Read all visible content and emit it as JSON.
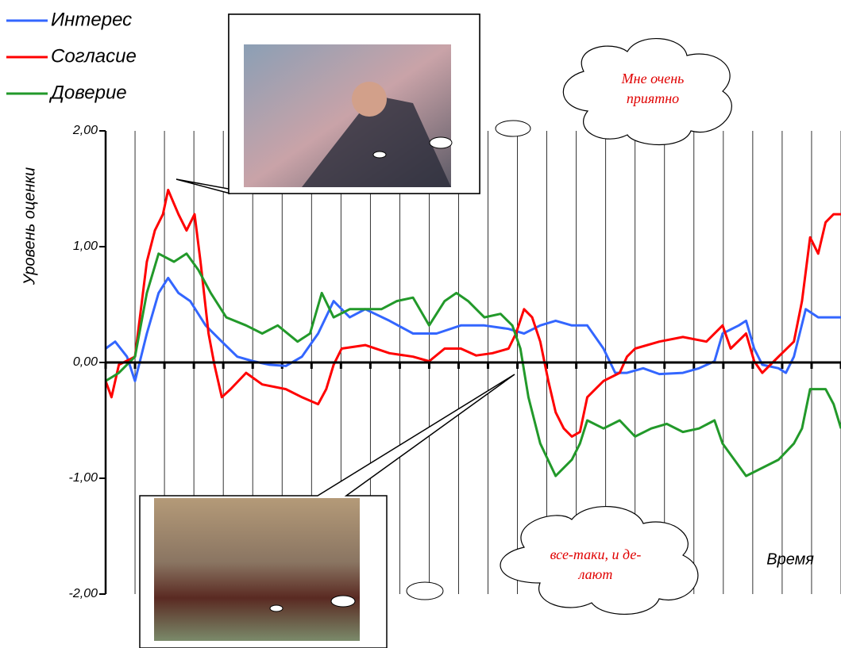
{
  "chart_data": {
    "type": "line",
    "y_label": "Уровень оценки",
    "x_label": "Время",
    "xlim": [
      0,
      100
    ],
    "xticks": [
      0,
      4,
      8,
      12,
      16,
      20,
      24,
      28,
      32,
      36,
      40,
      44,
      48,
      52,
      56,
      60,
      64,
      68,
      72,
      76,
      80,
      84,
      88,
      92,
      96,
      100
    ],
    "ylim": [
      -2,
      2
    ],
    "yticks": [
      {
        "value": 2,
        "label": "2,00"
      },
      {
        "value": 1,
        "label": "1,00"
      },
      {
        "value": 0,
        "label": "0,00"
      },
      {
        "value": -1,
        "label": "-1,00"
      },
      {
        "value": -2,
        "label": "-2,00"
      }
    ],
    "grid": true,
    "series": [
      {
        "name": "Интерес",
        "color": "#3366ff",
        "x": [
          0,
          1.3,
          2.9,
          4,
          5.6,
          7.2,
          8.5,
          9.9,
          11.5,
          13.6,
          15.8,
          17.9,
          20.1,
          22.3,
          24.5,
          26.7,
          28.9,
          31,
          33.2,
          35.3,
          38.6,
          41.8,
          45,
          48.3,
          51.5,
          54.8,
          56.9,
          59.1,
          61.2,
          63.4,
          65.5,
          67.7,
          69.3,
          70.9,
          73.1,
          75.3,
          78.5,
          80.7,
          82.8,
          83.9,
          86.1,
          87.1,
          88.2,
          89.3,
          91.5,
          92.5,
          93.6,
          95.2,
          96.9,
          100
        ],
        "values": [
          0.12,
          0.18,
          0.05,
          -0.16,
          0.25,
          0.6,
          0.73,
          0.6,
          0.53,
          0.32,
          0.18,
          0.05,
          0.01,
          -0.02,
          -0.03,
          0.05,
          0.25,
          0.53,
          0.39,
          0.46,
          0.36,
          0.25,
          0.25,
          0.32,
          0.32,
          0.29,
          0.25,
          0.32,
          0.36,
          0.32,
          0.32,
          0.12,
          -0.09,
          -0.09,
          -0.05,
          -0.1,
          -0.09,
          -0.05,
          0.01,
          0.25,
          0.32,
          0.36,
          0.12,
          -0.02,
          -0.05,
          -0.09,
          0.05,
          0.46,
          0.39,
          0.39
        ]
      },
      {
        "name": "Согласие",
        "color": "#ff0000",
        "x": [
          0,
          0.8,
          1.8,
          4,
          5.6,
          6.7,
          7.8,
          8.5,
          9.9,
          11,
          12.1,
          12.9,
          14,
          14.8,
          15.8,
          17,
          19.1,
          21.3,
          24.5,
          26.7,
          28.9,
          30,
          31,
          32.1,
          35.3,
          38.6,
          41.8,
          44,
          46.1,
          48.3,
          50.4,
          52.6,
          54.8,
          55.8,
          56.9,
          58,
          59.1,
          60.2,
          61.2,
          62.3,
          63.4,
          64.5,
          65.5,
          66.6,
          67.7,
          69.9,
          70.9,
          72,
          75.3,
          78.5,
          81.7,
          83.9,
          85,
          87.1,
          88.2,
          89.3,
          91.5,
          93.6,
          94.7,
          95.8,
          96.9,
          97.9,
          99,
          100
        ],
        "values": [
          -0.16,
          -0.3,
          -0.02,
          0.05,
          0.87,
          1.14,
          1.28,
          1.49,
          1.28,
          1.14,
          1.28,
          0.87,
          0.25,
          -0.02,
          -0.3,
          -0.23,
          -0.09,
          -0.19,
          -0.23,
          -0.3,
          -0.36,
          -0.23,
          -0.02,
          0.12,
          0.15,
          0.08,
          0.05,
          0.01,
          0.12,
          0.12,
          0.06,
          0.08,
          0.12,
          0.25,
          0.46,
          0.39,
          0.18,
          -0.16,
          -0.43,
          -0.57,
          -0.64,
          -0.6,
          -0.3,
          -0.23,
          -0.16,
          -0.09,
          0.05,
          0.12,
          0.18,
          0.22,
          0.18,
          0.32,
          0.12,
          0.25,
          0.01,
          -0.09,
          0.05,
          0.18,
          0.53,
          1.08,
          0.94,
          1.21,
          1.28,
          1.28
        ]
      },
      {
        "name": "Доверие",
        "color": "#22992a",
        "x": [
          0,
          1.8,
          4,
          5.6,
          7.2,
          9.3,
          11,
          12.6,
          14.3,
          16.4,
          19.1,
          21.3,
          23.4,
          26.1,
          27.8,
          29.4,
          31,
          33.2,
          35.3,
          37.5,
          39.6,
          41.8,
          44,
          46.1,
          47.7,
          49.3,
          51.5,
          53.7,
          55.3,
          56.4,
          57.5,
          59.1,
          61.2,
          63.4,
          64.5,
          65.5,
          67.7,
          69.9,
          72,
          74.2,
          76.3,
          78.5,
          80.7,
          82.8,
          83.9,
          85.5,
          87.1,
          89.3,
          91.5,
          93.6,
          94.7,
          95.8,
          97.9,
          99,
          100
        ],
        "values": [
          -0.16,
          -0.09,
          0.05,
          0.6,
          0.94,
          0.87,
          0.94,
          0.8,
          0.6,
          0.39,
          0.32,
          0.25,
          0.32,
          0.18,
          0.25,
          0.6,
          0.39,
          0.46,
          0.46,
          0.46,
          0.53,
          0.56,
          0.32,
          0.53,
          0.6,
          0.53,
          0.39,
          0.42,
          0.32,
          0.12,
          -0.3,
          -0.7,
          -0.98,
          -0.84,
          -0.7,
          -0.5,
          -0.57,
          -0.5,
          -0.64,
          -0.57,
          -0.53,
          -0.6,
          -0.57,
          -0.5,
          -0.7,
          -0.84,
          -0.98,
          -0.91,
          -0.84,
          -0.7,
          -0.57,
          -0.23,
          -0.23,
          -0.36,
          -0.57
        ]
      }
    ],
    "annotations": [
      {
        "lines": [
          "Мне очень",
          "приятно"
        ]
      },
      {
        "lines": [
          "все-таки, и де-",
          "лают"
        ]
      }
    ]
  }
}
